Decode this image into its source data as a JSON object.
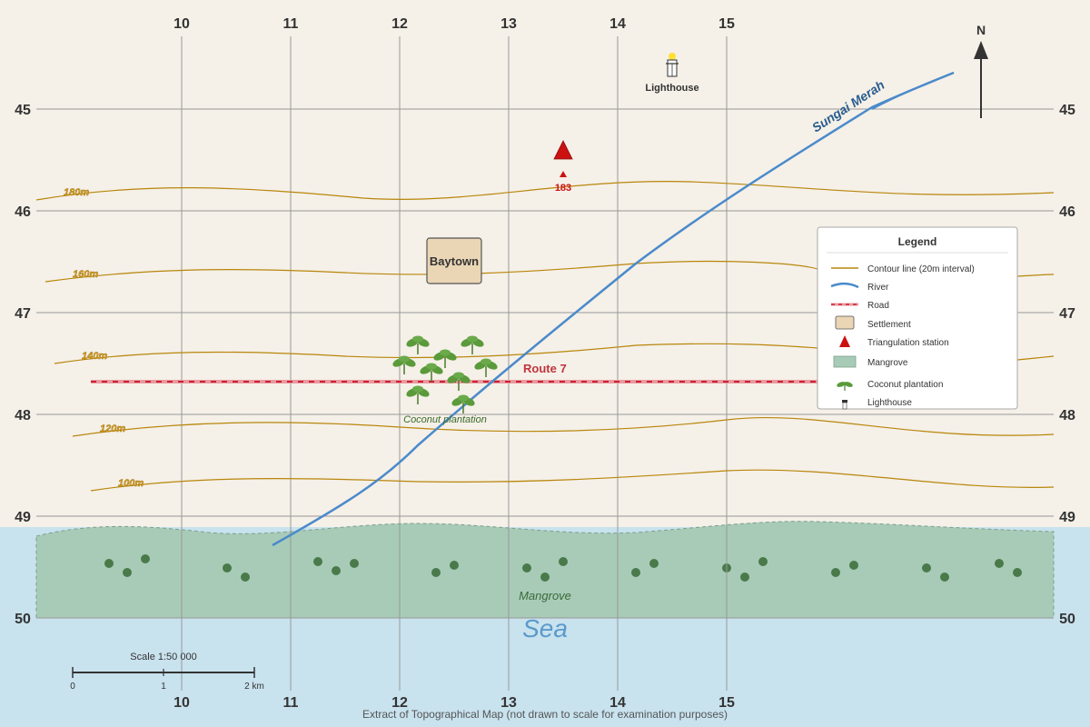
{
  "grid": {
    "eastings": [
      "10",
      "11",
      "12",
      "13",
      "14",
      "15"
    ],
    "northings": [
      "45",
      "46",
      "47",
      "48",
      "49",
      "50"
    ]
  },
  "contours": [
    {
      "label": "180m"
    },
    {
      "label": "160m"
    },
    {
      "label": "140m"
    },
    {
      "label": "120m"
    },
    {
      "label": "100m"
    }
  ],
  "features": {
    "river_name": "Sungai Merah",
    "road_name": "Route 7",
    "settlement_name": "Baytown",
    "lighthouse_label": "Lighthouse",
    "trig_height": "183",
    "plantation_label": "Coconut plantation",
    "mangrove_label": "Mangrove",
    "sea_label": "Sea",
    "north_label": "N"
  },
  "legend": {
    "title": "Legend",
    "items": [
      {
        "symbol": "contour",
        "label": "Contour line (20m interval)"
      },
      {
        "symbol": "river",
        "label": "River"
      },
      {
        "symbol": "road",
        "label": "Road"
      },
      {
        "symbol": "settlement",
        "label": "Settlement"
      },
      {
        "symbol": "triangulation",
        "label": "Triangulation station"
      },
      {
        "symbol": "mangrove",
        "label": "Mangrove"
      },
      {
        "symbol": "coconut",
        "label": "Coconut plantation"
      },
      {
        "symbol": "lighthouse",
        "label": "Lighthouse"
      }
    ]
  },
  "scale": {
    "label": "Scale 1:50 000",
    "ticks": [
      "0",
      "1",
      "2 km"
    ]
  },
  "caption": "Extract of Topographical Map (not drawn to scale for examination purposes)",
  "colors": {
    "land": "#f5f0e8",
    "sea": "#c8e2ee",
    "mangrove": "#a8cbb8",
    "river": "#4a8acb",
    "road": "#e89aa0",
    "contour": "#b8860b",
    "trig": "#cc1111",
    "settlement": "#ead5b5"
  }
}
